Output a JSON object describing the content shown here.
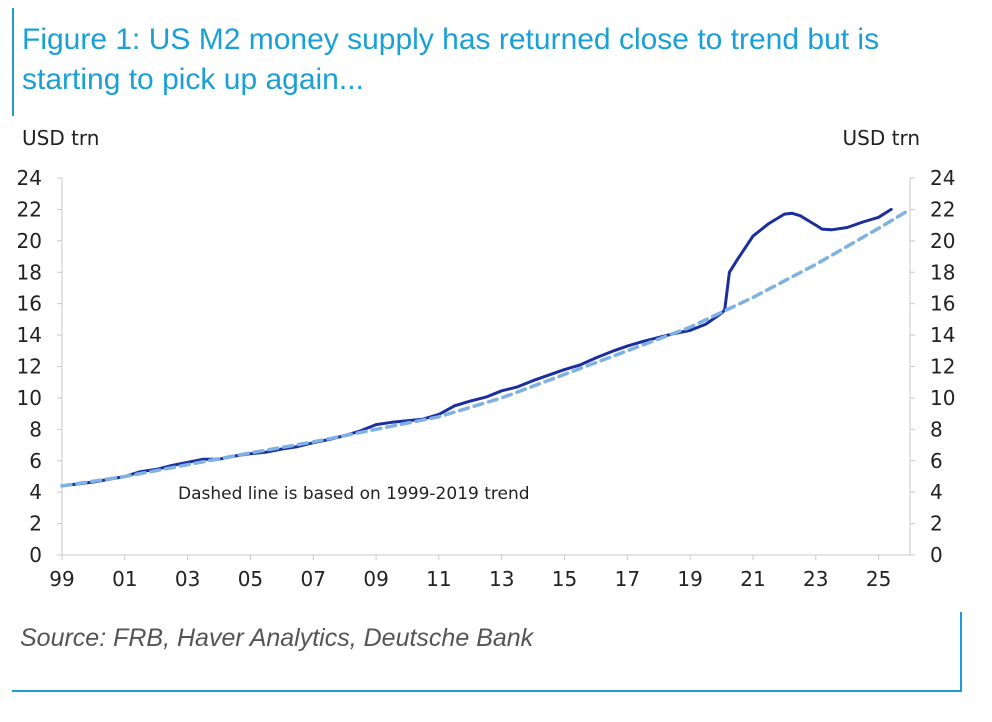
{
  "figure": {
    "title": "Figure 1: US M2 money supply has returned close to trend but is starting to pick up again...",
    "source": "Source: FRB, Haver Analytics, Deutsche Bank"
  },
  "colors": {
    "accent": "#1aa0d6",
    "actual_line": "#1b2f9c",
    "trend_line": "#7fb1e3",
    "source_text": "#555555"
  },
  "chart_data": {
    "type": "line",
    "title": "Figure 1: US M2 money supply has returned close to trend but is starting to pick up again...",
    "ylabel_left": "USD trn",
    "ylabel_right": "USD trn",
    "ylim": [
      0,
      24
    ],
    "y_ticks": [
      0,
      2,
      4,
      6,
      8,
      10,
      12,
      14,
      16,
      18,
      20,
      22,
      24
    ],
    "xlim": [
      1999,
      2026
    ],
    "x_ticks": [
      {
        "x": 1999,
        "label": "99"
      },
      {
        "x": 2001,
        "label": "01"
      },
      {
        "x": 2003,
        "label": "03"
      },
      {
        "x": 2005,
        "label": "05"
      },
      {
        "x": 2007,
        "label": "07"
      },
      {
        "x": 2009,
        "label": "09"
      },
      {
        "x": 2011,
        "label": "11"
      },
      {
        "x": 2013,
        "label": "13"
      },
      {
        "x": 2015,
        "label": "15"
      },
      {
        "x": 2017,
        "label": "17"
      },
      {
        "x": 2019,
        "label": "19"
      },
      {
        "x": 2021,
        "label": "21"
      },
      {
        "x": 2023,
        "label": "23"
      },
      {
        "x": 2025,
        "label": "25"
      }
    ],
    "grid": false,
    "annotation": "Dashed line is based on 1999-2019 trend",
    "series": [
      {
        "style": "solid",
        "x": [
          1999.0,
          2000.0,
          2001.0,
          2001.5,
          2002.0,
          2002.5,
          2003.0,
          2003.5,
          2004.0,
          2004.5,
          2005.0,
          2005.5,
          2006.0,
          2006.5,
          2007.0,
          2007.5,
          2008.0,
          2008.5,
          2009.0,
          2009.5,
          2010.0,
          2010.5,
          2011.0,
          2011.5,
          2012.0,
          2012.5,
          2013.0,
          2013.5,
          2014.0,
          2014.5,
          2015.0,
          2015.5,
          2016.0,
          2016.5,
          2017.0,
          2017.5,
          2018.0,
          2018.5,
          2019.0,
          2019.5,
          2020.0,
          2020.1,
          2020.25,
          2020.5,
          2021.0,
          2021.5,
          2022.0,
          2022.25,
          2022.5,
          2023.0,
          2023.2,
          2023.5,
          2024.0,
          2024.5,
          2025.0,
          2025.4
        ],
        "y": [
          4.4,
          4.65,
          5.0,
          5.3,
          5.45,
          5.7,
          5.9,
          6.1,
          6.1,
          6.3,
          6.45,
          6.55,
          6.75,
          6.9,
          7.15,
          7.35,
          7.6,
          7.9,
          8.3,
          8.45,
          8.55,
          8.65,
          8.95,
          9.5,
          9.8,
          10.05,
          10.45,
          10.7,
          11.1,
          11.45,
          11.8,
          12.1,
          12.55,
          12.95,
          13.3,
          13.6,
          13.85,
          14.1,
          14.3,
          14.7,
          15.4,
          15.6,
          18.0,
          18.8,
          20.3,
          21.1,
          21.7,
          21.75,
          21.6,
          21.0,
          20.75,
          20.7,
          20.85,
          21.2,
          21.5,
          22.0
        ]
      },
      {
        "style": "dashed",
        "x": [
          1999.0,
          2001.0,
          2003.0,
          2005.0,
          2007.0,
          2009.0,
          2011.0,
          2013.0,
          2015.0,
          2017.0,
          2019.0,
          2021.0,
          2023.0,
          2025.0,
          2026.0
        ],
        "y": [
          4.4,
          5.0,
          5.75,
          6.5,
          7.2,
          8.0,
          8.8,
          10.0,
          11.5,
          13.0,
          14.5,
          16.4,
          18.5,
          20.8,
          22.0
        ]
      }
    ]
  }
}
